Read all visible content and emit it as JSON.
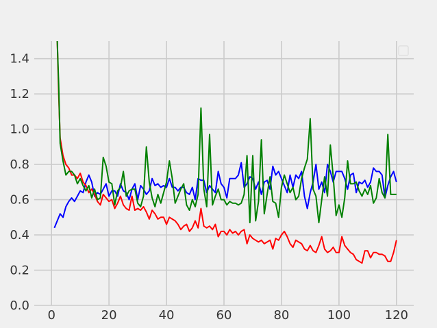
{
  "chart_data": {
    "type": "line",
    "title": "",
    "xlabel": "",
    "ylabel": "",
    "xlim": [
      -6,
      126
    ],
    "ylim": [
      0.0,
      1.5
    ],
    "xticks": [
      0,
      20,
      40,
      60,
      80,
      100,
      120
    ],
    "xtick_labels": [
      "0",
      "20",
      "40",
      "60",
      "80",
      "100",
      "120"
    ],
    "yticks": [
      0.0,
      0.2,
      0.4,
      0.6,
      0.8,
      1.0,
      1.2,
      1.4
    ],
    "ytick_labels": [
      "0.0",
      "0.2",
      "0.4",
      "0.6",
      "0.8",
      "1.0",
      "1.2",
      "1.4"
    ],
    "grid": true,
    "legend": "top-right (empty)",
    "series": [
      {
        "color": "#0000ff",
        "x": [
          1,
          2,
          3,
          4,
          5,
          6,
          7,
          8,
          9,
          10,
          11,
          12,
          13,
          14,
          15,
          16,
          17,
          18,
          19,
          20,
          21,
          22,
          23,
          24,
          25,
          26,
          27,
          28,
          29,
          30,
          31,
          32,
          33,
          34,
          35,
          36,
          37,
          38,
          39,
          40,
          41,
          42,
          43,
          44,
          45,
          46,
          47,
          48,
          49,
          50,
          51,
          52,
          53,
          54,
          55,
          56,
          57,
          58,
          59,
          60,
          61,
          62,
          63,
          64,
          65,
          66,
          67,
          68,
          69,
          70,
          71,
          72,
          73,
          74,
          75,
          76,
          77,
          78,
          79,
          80,
          81,
          82,
          83,
          84,
          85,
          86,
          87,
          88,
          89,
          90,
          91,
          92,
          93,
          94,
          95,
          96,
          97,
          98,
          99,
          100,
          101,
          102,
          103,
          104,
          105,
          106,
          107,
          108,
          109,
          110,
          111,
          112,
          113,
          114,
          115,
          116,
          117,
          118,
          119,
          120
        ],
        "y": [
          0.44,
          0.48,
          0.52,
          0.5,
          0.56,
          0.59,
          0.61,
          0.59,
          0.62,
          0.65,
          0.64,
          0.7,
          0.74,
          0.7,
          0.62,
          0.64,
          0.63,
          0.66,
          0.69,
          0.62,
          0.65,
          0.65,
          0.62,
          0.69,
          0.65,
          0.64,
          0.6,
          0.66,
          0.69,
          0.6,
          0.68,
          0.66,
          0.63,
          0.65,
          0.72,
          0.68,
          0.69,
          0.67,
          0.68,
          0.67,
          0.72,
          0.67,
          0.67,
          0.65,
          0.67,
          0.67,
          0.64,
          0.63,
          0.67,
          0.6,
          0.72,
          0.71,
          0.71,
          0.64,
          0.68,
          0.66,
          0.64,
          0.76,
          0.69,
          0.67,
          0.61,
          0.72,
          0.72,
          0.72,
          0.74,
          0.81,
          0.67,
          0.69,
          0.73,
          0.72,
          0.66,
          0.7,
          0.63,
          0.7,
          0.71,
          0.66,
          0.79,
          0.74,
          0.76,
          0.72,
          0.68,
          0.64,
          0.74,
          0.67,
          0.74,
          0.72,
          0.76,
          0.62,
          0.55,
          0.64,
          0.7,
          0.8,
          0.66,
          0.7,
          0.64,
          0.8,
          0.76,
          0.7,
          0.76,
          0.76,
          0.76,
          0.72,
          0.66,
          0.74,
          0.75,
          0.64,
          0.7,
          0.69,
          0.71,
          0.67,
          0.7,
          0.78,
          0.76,
          0.76,
          0.74,
          0.61,
          0.68,
          0.73,
          0.76,
          0.7
        ]
      },
      {
        "color": "#ff0000",
        "x": [
          2,
          2.5,
          3,
          4,
          5,
          6,
          7,
          8,
          9,
          10,
          11,
          12,
          13,
          14,
          15,
          16,
          17,
          18,
          19,
          20,
          21,
          22,
          23,
          24,
          25,
          26,
          27,
          28,
          29,
          30,
          31,
          32,
          33,
          34,
          35,
          36,
          37,
          38,
          39,
          40,
          41,
          42,
          43,
          44,
          45,
          46,
          47,
          48,
          49,
          50,
          51,
          52,
          53,
          54,
          55,
          56,
          57,
          58,
          59,
          60,
          61,
          62,
          63,
          64,
          65,
          66,
          67,
          68,
          69,
          70,
          71,
          72,
          73,
          74,
          75,
          76,
          77,
          78,
          79,
          80,
          81,
          82,
          83,
          84,
          85,
          86,
          87,
          88,
          89,
          90,
          91,
          92,
          93,
          94,
          95,
          96,
          97,
          98,
          99,
          100,
          101,
          102,
          103,
          104,
          105,
          106,
          107,
          108,
          109,
          110,
          111,
          112,
          113,
          114,
          115,
          116,
          117,
          118,
          119,
          120
        ],
        "y": [
          1.5,
          1.2,
          0.95,
          0.85,
          0.8,
          0.78,
          0.74,
          0.74,
          0.72,
          0.75,
          0.7,
          0.68,
          0.64,
          0.66,
          0.63,
          0.59,
          0.57,
          0.63,
          0.61,
          0.59,
          0.6,
          0.55,
          0.58,
          0.62,
          0.57,
          0.55,
          0.54,
          0.62,
          0.54,
          0.55,
          0.54,
          0.56,
          0.53,
          0.49,
          0.54,
          0.52,
          0.49,
          0.5,
          0.5,
          0.46,
          0.5,
          0.49,
          0.48,
          0.46,
          0.43,
          0.45,
          0.46,
          0.42,
          0.44,
          0.48,
          0.44,
          0.55,
          0.45,
          0.44,
          0.45,
          0.43,
          0.46,
          0.39,
          0.42,
          0.42,
          0.4,
          0.43,
          0.41,
          0.42,
          0.4,
          0.42,
          0.43,
          0.35,
          0.4,
          0.38,
          0.37,
          0.36,
          0.37,
          0.35,
          0.36,
          0.37,
          0.32,
          0.38,
          0.37,
          0.4,
          0.42,
          0.39,
          0.35,
          0.33,
          0.37,
          0.36,
          0.35,
          0.32,
          0.31,
          0.34,
          0.31,
          0.3,
          0.34,
          0.39,
          0.32,
          0.3,
          0.31,
          0.33,
          0.3,
          0.3,
          0.39,
          0.34,
          0.32,
          0.3,
          0.29,
          0.26,
          0.25,
          0.24,
          0.31,
          0.31,
          0.27,
          0.3,
          0.3,
          0.29,
          0.29,
          0.28,
          0.25,
          0.25,
          0.3,
          0.37
        ]
      },
      {
        "color": "#008000",
        "x": [
          2,
          2.5,
          3,
          4,
          5,
          6,
          7,
          8,
          9,
          10,
          11,
          12,
          13,
          14,
          15,
          16,
          17,
          18,
          19,
          20,
          21,
          22,
          23,
          24,
          25,
          26,
          27,
          28,
          29,
          30,
          31,
          32,
          33,
          34,
          35,
          36,
          37,
          38,
          39,
          40,
          41,
          42,
          43,
          44,
          45,
          46,
          47,
          48,
          49,
          50,
          51,
          52,
          53,
          54,
          55,
          56,
          57,
          58,
          59,
          60,
          61,
          62,
          63,
          64,
          65,
          66,
          67,
          68,
          69,
          70,
          71,
          72,
          73,
          74,
          75,
          76,
          77,
          78,
          79,
          80,
          81,
          82,
          83,
          84,
          85,
          86,
          87,
          88,
          89,
          90,
          91,
          92,
          93,
          94,
          95,
          96,
          97,
          98,
          99,
          100,
          101,
          102,
          103,
          104,
          105,
          106,
          107,
          108,
          109,
          110,
          111,
          112,
          113,
          114,
          115,
          116,
          117,
          118,
          119,
          120
        ],
        "y": [
          1.5,
          1.25,
          0.92,
          0.82,
          0.74,
          0.76,
          0.76,
          0.74,
          0.69,
          0.72,
          0.68,
          0.65,
          0.68,
          0.61,
          0.66,
          0.6,
          0.61,
          0.84,
          0.79,
          0.7,
          0.69,
          0.57,
          0.65,
          0.67,
          0.76,
          0.62,
          0.65,
          0.66,
          0.66,
          0.58,
          0.56,
          0.62,
          0.9,
          0.7,
          0.61,
          0.56,
          0.63,
          0.58,
          0.64,
          0.7,
          0.82,
          0.72,
          0.58,
          0.62,
          0.66,
          0.69,
          0.57,
          0.54,
          0.6,
          0.56,
          0.63,
          1.12,
          0.66,
          0.56,
          0.97,
          0.57,
          0.62,
          0.66,
          0.6,
          0.6,
          0.57,
          0.59,
          0.58,
          0.58,
          0.57,
          0.58,
          0.63,
          0.85,
          0.47,
          0.85,
          0.48,
          0.59,
          0.94,
          0.52,
          0.63,
          0.73,
          0.59,
          0.58,
          0.5,
          0.67,
          0.74,
          0.69,
          0.64,
          0.67,
          0.6,
          0.62,
          0.72,
          0.78,
          0.83,
          1.06,
          0.66,
          0.62,
          0.47,
          0.6,
          0.73,
          0.62,
          0.91,
          0.73,
          0.51,
          0.57,
          0.5,
          0.61,
          0.82,
          0.69,
          0.69,
          0.7,
          0.65,
          0.62,
          0.66,
          0.63,
          0.68,
          0.58,
          0.61,
          0.72,
          0.64,
          0.61,
          0.97,
          0.63,
          0.63,
          0.63
        ]
      }
    ]
  }
}
